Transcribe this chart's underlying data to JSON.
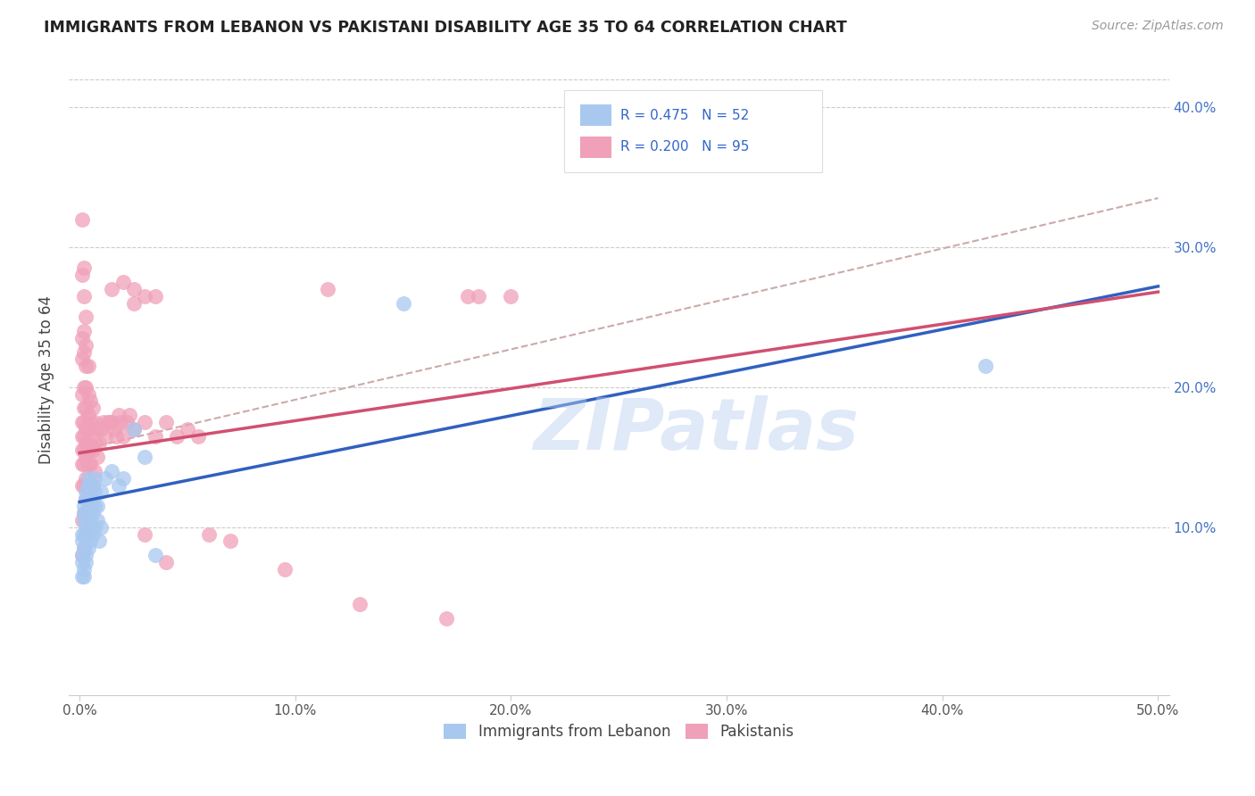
{
  "title": "IMMIGRANTS FROM LEBANON VS PAKISTANI DISABILITY AGE 35 TO 64 CORRELATION CHART",
  "source": "Source: ZipAtlas.com",
  "ylabel": "Disability Age 35 to 64",
  "xlabel_ticks": [
    "0.0%",
    "10.0%",
    "20.0%",
    "30.0%",
    "40.0%",
    "50.0%"
  ],
  "xlabel_vals": [
    0.0,
    0.1,
    0.2,
    0.3,
    0.4,
    0.5
  ],
  "ylabel_ticks": [
    "10.0%",
    "20.0%",
    "30.0%",
    "40.0%"
  ],
  "ylabel_vals": [
    0.1,
    0.2,
    0.3,
    0.4
  ],
  "xlim": [
    -0.005,
    0.505
  ],
  "ylim": [
    -0.02,
    0.43
  ],
  "legend_bottom1": "Immigrants from Lebanon",
  "legend_bottom2": "Pakistanis",
  "watermark": "ZIPatlas",
  "blue_color": "#a8c8f0",
  "pink_color": "#f0a0b8",
  "blue_line_color": "#3060c0",
  "pink_line_color": "#d05070",
  "dashed_line_color": "#ccaaaa",
  "blue_line": {
    "x0": 0.0,
    "y0": 0.118,
    "x1": 0.5,
    "y1": 0.272
  },
  "pink_line": {
    "x0": 0.0,
    "y0": 0.153,
    "x1": 0.5,
    "y1": 0.268
  },
  "dash_line": {
    "x0": 0.0,
    "y0": 0.155,
    "x1": 0.5,
    "y1": 0.335
  },
  "blue_scatter": [
    [
      0.001,
      0.065
    ],
    [
      0.001,
      0.075
    ],
    [
      0.001,
      0.08
    ],
    [
      0.001,
      0.09
    ],
    [
      0.001,
      0.095
    ],
    [
      0.002,
      0.065
    ],
    [
      0.002,
      0.07
    ],
    [
      0.002,
      0.085
    ],
    [
      0.002,
      0.095
    ],
    [
      0.002,
      0.105
    ],
    [
      0.002,
      0.11
    ],
    [
      0.002,
      0.115
    ],
    [
      0.003,
      0.075
    ],
    [
      0.003,
      0.08
    ],
    [
      0.003,
      0.095
    ],
    [
      0.003,
      0.1
    ],
    [
      0.003,
      0.11
    ],
    [
      0.003,
      0.12
    ],
    [
      0.003,
      0.125
    ],
    [
      0.004,
      0.085
    ],
    [
      0.004,
      0.1
    ],
    [
      0.004,
      0.11
    ],
    [
      0.004,
      0.12
    ],
    [
      0.004,
      0.13
    ],
    [
      0.004,
      0.135
    ],
    [
      0.005,
      0.09
    ],
    [
      0.005,
      0.105
    ],
    [
      0.005,
      0.115
    ],
    [
      0.005,
      0.125
    ],
    [
      0.005,
      0.13
    ],
    [
      0.006,
      0.095
    ],
    [
      0.006,
      0.11
    ],
    [
      0.006,
      0.12
    ],
    [
      0.006,
      0.13
    ],
    [
      0.007,
      0.1
    ],
    [
      0.007,
      0.115
    ],
    [
      0.007,
      0.125
    ],
    [
      0.007,
      0.135
    ],
    [
      0.008,
      0.105
    ],
    [
      0.008,
      0.115
    ],
    [
      0.009,
      0.09
    ],
    [
      0.01,
      0.1
    ],
    [
      0.01,
      0.125
    ],
    [
      0.012,
      0.135
    ],
    [
      0.015,
      0.14
    ],
    [
      0.018,
      0.13
    ],
    [
      0.02,
      0.135
    ],
    [
      0.025,
      0.17
    ],
    [
      0.03,
      0.15
    ],
    [
      0.035,
      0.08
    ],
    [
      0.15,
      0.26
    ],
    [
      0.42,
      0.215
    ]
  ],
  "pink_scatter": [
    [
      0.001,
      0.08
    ],
    [
      0.001,
      0.105
    ],
    [
      0.001,
      0.13
    ],
    [
      0.001,
      0.145
    ],
    [
      0.001,
      0.155
    ],
    [
      0.001,
      0.165
    ],
    [
      0.001,
      0.175
    ],
    [
      0.001,
      0.195
    ],
    [
      0.001,
      0.22
    ],
    [
      0.001,
      0.235
    ],
    [
      0.001,
      0.28
    ],
    [
      0.001,
      0.32
    ],
    [
      0.002,
      0.085
    ],
    [
      0.002,
      0.11
    ],
    [
      0.002,
      0.13
    ],
    [
      0.002,
      0.145
    ],
    [
      0.002,
      0.155
    ],
    [
      0.002,
      0.165
    ],
    [
      0.002,
      0.175
    ],
    [
      0.002,
      0.185
    ],
    [
      0.002,
      0.2
    ],
    [
      0.002,
      0.225
    ],
    [
      0.002,
      0.24
    ],
    [
      0.002,
      0.265
    ],
    [
      0.002,
      0.285
    ],
    [
      0.003,
      0.095
    ],
    [
      0.003,
      0.12
    ],
    [
      0.003,
      0.135
    ],
    [
      0.003,
      0.15
    ],
    [
      0.003,
      0.16
    ],
    [
      0.003,
      0.17
    ],
    [
      0.003,
      0.185
    ],
    [
      0.003,
      0.2
    ],
    [
      0.003,
      0.215
    ],
    [
      0.003,
      0.23
    ],
    [
      0.003,
      0.25
    ],
    [
      0.004,
      0.11
    ],
    [
      0.004,
      0.13
    ],
    [
      0.004,
      0.145
    ],
    [
      0.004,
      0.155
    ],
    [
      0.004,
      0.17
    ],
    [
      0.004,
      0.18
    ],
    [
      0.004,
      0.195
    ],
    [
      0.004,
      0.215
    ],
    [
      0.005,
      0.125
    ],
    [
      0.005,
      0.145
    ],
    [
      0.005,
      0.16
    ],
    [
      0.005,
      0.175
    ],
    [
      0.005,
      0.19
    ],
    [
      0.006,
      0.13
    ],
    [
      0.006,
      0.155
    ],
    [
      0.006,
      0.17
    ],
    [
      0.006,
      0.185
    ],
    [
      0.007,
      0.14
    ],
    [
      0.007,
      0.16
    ],
    [
      0.007,
      0.175
    ],
    [
      0.008,
      0.15
    ],
    [
      0.008,
      0.17
    ],
    [
      0.009,
      0.16
    ],
    [
      0.01,
      0.17
    ],
    [
      0.011,
      0.175
    ],
    [
      0.012,
      0.165
    ],
    [
      0.013,
      0.175
    ],
    [
      0.014,
      0.175
    ],
    [
      0.015,
      0.175
    ],
    [
      0.016,
      0.17
    ],
    [
      0.017,
      0.165
    ],
    [
      0.018,
      0.18
    ],
    [
      0.019,
      0.175
    ],
    [
      0.02,
      0.165
    ],
    [
      0.022,
      0.175
    ],
    [
      0.023,
      0.18
    ],
    [
      0.025,
      0.17
    ],
    [
      0.03,
      0.175
    ],
    [
      0.035,
      0.165
    ],
    [
      0.04,
      0.175
    ],
    [
      0.045,
      0.165
    ],
    [
      0.05,
      0.17
    ],
    [
      0.055,
      0.165
    ],
    [
      0.06,
      0.095
    ],
    [
      0.07,
      0.09
    ],
    [
      0.095,
      0.07
    ],
    [
      0.13,
      0.045
    ],
    [
      0.17,
      0.035
    ],
    [
      0.03,
      0.095
    ],
    [
      0.04,
      0.075
    ],
    [
      0.18,
      0.265
    ],
    [
      0.2,
      0.265
    ],
    [
      0.115,
      0.27
    ],
    [
      0.015,
      0.27
    ],
    [
      0.02,
      0.275
    ],
    [
      0.025,
      0.27
    ],
    [
      0.025,
      0.26
    ],
    [
      0.03,
      0.265
    ],
    [
      0.035,
      0.265
    ],
    [
      0.185,
      0.265
    ]
  ]
}
